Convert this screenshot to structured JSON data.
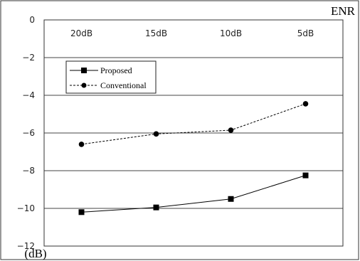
{
  "chart_data": {
    "type": "line",
    "categories": [
      "20dB",
      "15dB",
      "10dB",
      "5dB"
    ],
    "x_axis_title": "ENR",
    "y_unit": "(dB)",
    "ylim": [
      -12,
      0
    ],
    "y_ticks": [
      0,
      -2,
      -4,
      -6,
      -8,
      -10,
      -12
    ],
    "grid": true,
    "legend_position": "top-left",
    "series": [
      {
        "name": "Proposed",
        "values": [
          -10.2,
          -9.95,
          -9.5,
          -8.25
        ],
        "marker": "square",
        "line_style": "solid",
        "color": "#000000"
      },
      {
        "name": "Conventional",
        "values": [
          -6.6,
          -6.05,
          -5.85,
          -4.45
        ],
        "marker": "circle",
        "line_style": "dashed",
        "color": "#000000"
      }
    ]
  }
}
